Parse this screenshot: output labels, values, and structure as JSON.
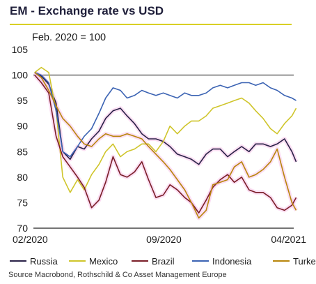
{
  "title": "EM - Exchange rate vs USD",
  "subtitle": "Feb. 2020 = 100",
  "source": "Source Macrobond, Rothschild & Co Asset Management Europe",
  "colors": {
    "accent_rule": "#d9d025",
    "highlight": "#f7b8e4"
  },
  "chart_data": {
    "type": "line",
    "x_tick_labels": [
      "02/2020",
      "09/2020",
      "04/2021"
    ],
    "x_range": [
      "2020-02",
      "2021-04"
    ],
    "ylim": [
      70,
      105
    ],
    "y_ticks": [
      70,
      75,
      80,
      85,
      90,
      95,
      100,
      105
    ],
    "reference_line": 100,
    "grid": false,
    "legend": "bottom",
    "series": [
      {
        "name": "Russia",
        "color": "#2a2248",
        "x": [
          "2020-02-03",
          "2020-02-14",
          "2020-02-26",
          "2020-03-09",
          "2020-03-20",
          "2020-04-01",
          "2020-04-13",
          "2020-04-24",
          "2020-05-06",
          "2020-05-18",
          "2020-05-29",
          "2020-06-10",
          "2020-06-22",
          "2020-07-03",
          "2020-07-15",
          "2020-07-27",
          "2020-08-07",
          "2020-08-19",
          "2020-08-31",
          "2020-09-11",
          "2020-09-23",
          "2020-10-05",
          "2020-10-16",
          "2020-10-28",
          "2020-11-09",
          "2020-11-20",
          "2020-12-02",
          "2020-12-14",
          "2020-12-25",
          "2021-01-06",
          "2021-01-18",
          "2021-01-29",
          "2021-02-10",
          "2021-02-22",
          "2021-03-05",
          "2021-03-17",
          "2021-03-29",
          "2021-04-05"
        ],
        "y": [
          100.5,
          99.8,
          98.2,
          94.5,
          85.0,
          83.5,
          86.0,
          85.5,
          87.5,
          89.0,
          91.5,
          93.0,
          93.5,
          92.0,
          90.5,
          88.5,
          87.5,
          87.5,
          87.0,
          86.0,
          84.5,
          84.0,
          83.5,
          82.5,
          84.5,
          85.5,
          85.5,
          84.0,
          85.0,
          86.0,
          85.0,
          86.5,
          86.5,
          86.0,
          86.5,
          87.5,
          85.0,
          83.0
        ]
      },
      {
        "name": "Mexico",
        "color": "#cfc52b",
        "x": [
          "2020-02-03",
          "2020-02-14",
          "2020-02-26",
          "2020-03-09",
          "2020-03-20",
          "2020-04-01",
          "2020-04-13",
          "2020-04-24",
          "2020-05-06",
          "2020-05-18",
          "2020-05-29",
          "2020-06-10",
          "2020-06-22",
          "2020-07-03",
          "2020-07-15",
          "2020-07-27",
          "2020-08-07",
          "2020-08-19",
          "2020-08-31",
          "2020-09-11",
          "2020-09-23",
          "2020-10-05",
          "2020-10-16",
          "2020-10-28",
          "2020-11-09",
          "2020-11-20",
          "2020-12-02",
          "2020-12-14",
          "2020-12-25",
          "2021-01-06",
          "2021-01-18",
          "2021-01-29",
          "2021-02-10",
          "2021-02-22",
          "2021-03-05",
          "2021-03-17",
          "2021-03-29",
          "2021-04-05"
        ],
        "y": [
          100.5,
          101.5,
          100.5,
          93.0,
          80.0,
          77.0,
          79.5,
          77.5,
          80.5,
          82.5,
          85.0,
          86.5,
          84.0,
          85.0,
          85.5,
          86.5,
          86.5,
          85.0,
          87.0,
          90.0,
          88.5,
          90.0,
          91.0,
          91.0,
          92.0,
          93.5,
          94.0,
          94.5,
          95.0,
          95.5,
          94.5,
          93.0,
          91.5,
          89.5,
          88.5,
          90.5,
          92.0,
          93.5
        ]
      },
      {
        "name": "Brazil",
        "color": "#7a1e28",
        "x": [
          "2020-02-03",
          "2020-02-14",
          "2020-02-26",
          "2020-03-09",
          "2020-03-20",
          "2020-04-01",
          "2020-04-13",
          "2020-04-24",
          "2020-05-06",
          "2020-05-18",
          "2020-05-29",
          "2020-06-10",
          "2020-06-22",
          "2020-07-03",
          "2020-07-15",
          "2020-07-27",
          "2020-08-07",
          "2020-08-19",
          "2020-08-31",
          "2020-09-11",
          "2020-09-23",
          "2020-10-05",
          "2020-10-16",
          "2020-10-28",
          "2020-11-09",
          "2020-11-20",
          "2020-12-02",
          "2020-12-14",
          "2020-12-25",
          "2021-01-06",
          "2021-01-18",
          "2021-01-29",
          "2021-02-10",
          "2021-02-22",
          "2021-03-05",
          "2021-03-17",
          "2021-03-29",
          "2021-04-05"
        ],
        "y": [
          100.0,
          98.5,
          96.5,
          88.0,
          84.0,
          82.0,
          80.0,
          78.0,
          74.0,
          75.5,
          79.0,
          84.0,
          80.5,
          80.0,
          81.0,
          83.0,
          79.5,
          76.0,
          76.5,
          78.5,
          77.5,
          76.0,
          75.0,
          73.0,
          75.5,
          78.0,
          79.5,
          80.5,
          79.0,
          80.0,
          77.5,
          77.0,
          77.0,
          76.0,
          74.0,
          73.5,
          74.5,
          76.0
        ]
      },
      {
        "name": "Indonesia",
        "color": "#3b63b3",
        "x": [
          "2020-02-03",
          "2020-02-14",
          "2020-02-26",
          "2020-03-09",
          "2020-03-20",
          "2020-04-01",
          "2020-04-13",
          "2020-04-24",
          "2020-05-06",
          "2020-05-18",
          "2020-05-29",
          "2020-06-10",
          "2020-06-22",
          "2020-07-03",
          "2020-07-15",
          "2020-07-27",
          "2020-08-07",
          "2020-08-19",
          "2020-08-31",
          "2020-09-11",
          "2020-09-23",
          "2020-10-05",
          "2020-10-16",
          "2020-10-28",
          "2020-11-09",
          "2020-11-20",
          "2020-12-02",
          "2020-12-14",
          "2020-12-25",
          "2021-01-06",
          "2021-01-18",
          "2021-01-29",
          "2021-02-10",
          "2021-02-22",
          "2021-03-05",
          "2021-03-17",
          "2021-03-29",
          "2021-04-05"
        ],
        "y": [
          100.5,
          100.0,
          98.5,
          93.0,
          85.0,
          84.0,
          86.0,
          88.0,
          89.5,
          92.5,
          95.5,
          97.5,
          97.0,
          95.5,
          96.0,
          97.0,
          96.5,
          96.0,
          96.5,
          96.0,
          95.5,
          96.5,
          96.0,
          96.0,
          96.5,
          97.5,
          98.0,
          97.5,
          98.0,
          98.5,
          98.5,
          98.0,
          98.5,
          97.5,
          97.0,
          96.0,
          95.5,
          95.0
        ]
      },
      {
        "name": "Turkey",
        "color": "#b8860b",
        "x": [
          "2020-02-03",
          "2020-02-14",
          "2020-02-26",
          "2020-03-09",
          "2020-03-20",
          "2020-04-01",
          "2020-04-13",
          "2020-04-24",
          "2020-05-06",
          "2020-05-18",
          "2020-05-29",
          "2020-06-10",
          "2020-06-22",
          "2020-07-03",
          "2020-07-15",
          "2020-07-27",
          "2020-08-07",
          "2020-08-19",
          "2020-08-31",
          "2020-09-11",
          "2020-09-23",
          "2020-10-05",
          "2020-10-16",
          "2020-10-28",
          "2020-11-09",
          "2020-11-20",
          "2020-12-02",
          "2020-12-14",
          "2020-12-25",
          "2021-01-06",
          "2021-01-18",
          "2021-01-29",
          "2021-02-10",
          "2021-02-22",
          "2021-03-05",
          "2021-03-17",
          "2021-03-29",
          "2021-04-05"
        ],
        "y": [
          100.5,
          99.5,
          97.0,
          94.0,
          91.5,
          90.0,
          88.0,
          86.5,
          86.0,
          87.5,
          88.5,
          88.0,
          88.0,
          88.5,
          88.0,
          87.5,
          86.0,
          84.5,
          83.0,
          81.5,
          79.5,
          77.5,
          75.0,
          72.0,
          73.5,
          78.5,
          79.0,
          79.5,
          82.0,
          83.0,
          80.0,
          80.5,
          81.5,
          83.0,
          85.5,
          80.0,
          75.0,
          73.5
        ]
      }
    ]
  }
}
